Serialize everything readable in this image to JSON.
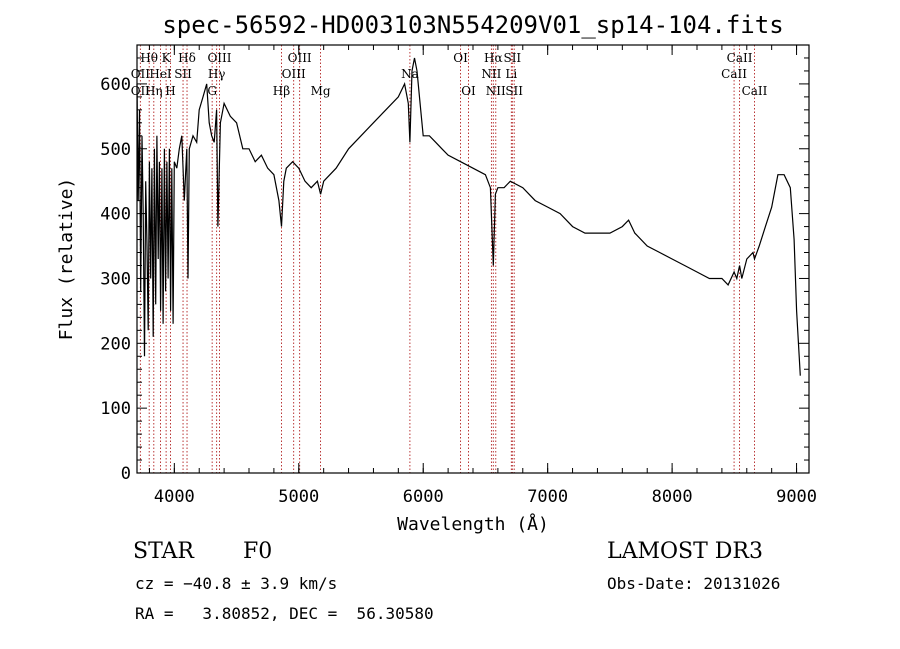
{
  "chart_data": {
    "type": "line",
    "title": "spec-56592-HD003103N554209V01_sp14-104.fits",
    "xlabel": "Wavelength (Å)",
    "ylabel": "Flux (relative)",
    "xlim": [
      3700,
      9100
    ],
    "ylim": [
      0,
      660
    ],
    "xticks": [
      4000,
      5000,
      6000,
      7000,
      8000,
      9000
    ],
    "yticks": [
      0,
      100,
      200,
      300,
      400,
      500,
      600
    ],
    "series": [
      {
        "name": "spectrum",
        "x": [
          3700,
          3710,
          3720,
          3730,
          3740,
          3750,
          3760,
          3770,
          3780,
          3790,
          3800,
          3810,
          3820,
          3830,
          3840,
          3850,
          3860,
          3870,
          3880,
          3890,
          3900,
          3910,
          3920,
          3930,
          3940,
          3950,
          3960,
          3970,
          3980,
          3990,
          4000,
          4020,
          4040,
          4060,
          4080,
          4100,
          4110,
          4120,
          4150,
          4180,
          4200,
          4230,
          4260,
          4280,
          4300,
          4320,
          4340,
          4350,
          4370,
          4400,
          4450,
          4500,
          4550,
          4600,
          4650,
          4700,
          4750,
          4800,
          4840,
          4861,
          4880,
          4900,
          4950,
          5000,
          5050,
          5100,
          5150,
          5175,
          5200,
          5300,
          5400,
          5500,
          5600,
          5700,
          5800,
          5850,
          5880,
          5893,
          5910,
          5930,
          5950,
          5980,
          6000,
          6050,
          6100,
          6150,
          6200,
          6300,
          6400,
          6500,
          6540,
          6563,
          6580,
          6600,
          6650,
          6700,
          6800,
          6900,
          7000,
          7100,
          7200,
          7300,
          7400,
          7500,
          7600,
          7650,
          7700,
          7800,
          7900,
          8000,
          8100,
          8200,
          8300,
          8400,
          8450,
          8498,
          8520,
          8542,
          8560,
          8600,
          8650,
          8662,
          8700,
          8750,
          8800,
          8850,
          8900,
          8950,
          8980,
          9000,
          9030
        ],
        "y": [
          600,
          420,
          560,
          280,
          520,
          400,
          180,
          450,
          350,
          220,
          480,
          300,
          470,
          210,
          500,
          260,
          520,
          330,
          480,
          250,
          470,
          230,
          500,
          280,
          480,
          300,
          500,
          250,
          470,
          230,
          480,
          470,
          500,
          520,
          420,
          500,
          300,
          500,
          520,
          510,
          560,
          580,
          600,
          540,
          520,
          510,
          560,
          380,
          540,
          570,
          550,
          540,
          500,
          500,
          480,
          490,
          470,
          460,
          420,
          380,
          450,
          470,
          480,
          470,
          450,
          440,
          450,
          430,
          450,
          470,
          500,
          520,
          540,
          560,
          580,
          600,
          570,
          510,
          620,
          640,
          620,
          560,
          520,
          520,
          510,
          500,
          490,
          480,
          470,
          460,
          440,
          320,
          430,
          440,
          440,
          450,
          440,
          420,
          410,
          400,
          380,
          370,
          370,
          370,
          380,
          390,
          370,
          350,
          340,
          330,
          320,
          310,
          300,
          300,
          290,
          310,
          300,
          320,
          300,
          330,
          340,
          330,
          350,
          380,
          410,
          460,
          460,
          440,
          360,
          250,
          150
        ]
      }
    ],
    "line_labels": [
      {
        "label": "Hθ",
        "x": 3798,
        "row": 1
      },
      {
        "label": "OII",
        "x": 3727,
        "row": 2
      },
      {
        "label": "OII",
        "x": 3727,
        "row": 3
      },
      {
        "label": "Hη",
        "x": 3835,
        "row": 3
      },
      {
        "label": "K",
        "x": 3934,
        "row": 1
      },
      {
        "label": "HeI",
        "x": 3889,
        "row": 2
      },
      {
        "label": "H",
        "x": 3969,
        "row": 3
      },
      {
        "label": "SII",
        "x": 4070,
        "row": 2
      },
      {
        "label": "Hδ",
        "x": 4102,
        "row": 1
      },
      {
        "label": "OIII",
        "x": 4363,
        "row": 1
      },
      {
        "label": "Hγ",
        "x": 4340,
        "row": 2
      },
      {
        "label": "G",
        "x": 4304,
        "row": 3
      },
      {
        "label": "Hβ",
        "x": 4861,
        "row": 3
      },
      {
        "label": "OIII",
        "x": 5007,
        "row": 1
      },
      {
        "label": "OIII",
        "x": 4959,
        "row": 2
      },
      {
        "label": "Mg",
        "x": 5175,
        "row": 3
      },
      {
        "label": "Na",
        "x": 5893,
        "row": 2
      },
      {
        "label": "OI",
        "x": 6300,
        "row": 1
      },
      {
        "label": "OI",
        "x": 6364,
        "row": 3
      },
      {
        "label": "Hα",
        "x": 6563,
        "row": 1
      },
      {
        "label": "NII",
        "x": 6548,
        "row": 2
      },
      {
        "label": "NII",
        "x": 6583,
        "row": 3
      },
      {
        "label": "SII",
        "x": 6716,
        "row": 1
      },
      {
        "label": "Li",
        "x": 6708,
        "row": 2
      },
      {
        "label": "SII",
        "x": 6731,
        "row": 3
      },
      {
        "label": "CaII",
        "x": 8542,
        "row": 1
      },
      {
        "label": "CaII",
        "x": 8498,
        "row": 2
      },
      {
        "label": "CaII",
        "x": 8662,
        "row": 3
      }
    ]
  },
  "info": {
    "object_class": "STAR",
    "subclass": "F0",
    "survey": "LAMOST DR3",
    "redshift": "cz = −40.8 ± 3.9 km/s",
    "obs_date": "Obs-Date: 20131026",
    "coords": "RA =   3.80852, DEC =  56.30580"
  }
}
